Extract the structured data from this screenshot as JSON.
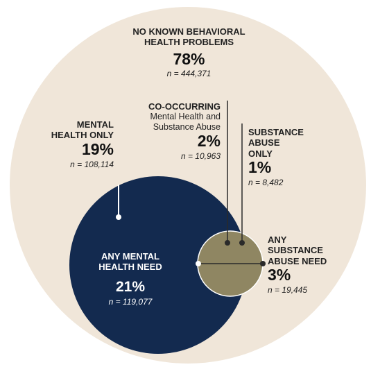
{
  "colors": {
    "outer_fill": "#f0e6d9",
    "mental_fill": "#132a4f",
    "substance_fill": "#8f8662",
    "leader": "#2a2a2a"
  },
  "no_known": {
    "title1": "NO KNOWN BEHAVIORAL",
    "title2": "HEALTH PROBLEMS",
    "pct": "78%",
    "n": "n = 444,371"
  },
  "mental_only": {
    "title1": "MENTAL",
    "title2": "HEALTH ONLY",
    "pct": "19%",
    "n": "n = 108,114"
  },
  "co_occurring": {
    "title": "CO-OCCURRING",
    "sub1": "Mental Health and",
    "sub2": "Substance Abuse",
    "pct": "2%",
    "n": "n = 10,963"
  },
  "substance_only": {
    "title1": "SUBSTANCE",
    "title2": "ABUSE",
    "title3": "ONLY",
    "pct": "1%",
    "n": "n = 8,482"
  },
  "any_mental": {
    "title1": "ANY MENTAL",
    "title2": "HEALTH NEED",
    "pct": "21%",
    "n": "n = 119,077"
  },
  "any_substance": {
    "title1": "ANY",
    "title2": "SUBSTANCE",
    "title3": "ABUSE NEED",
    "pct": "3%",
    "n": "n = 19,445"
  }
}
